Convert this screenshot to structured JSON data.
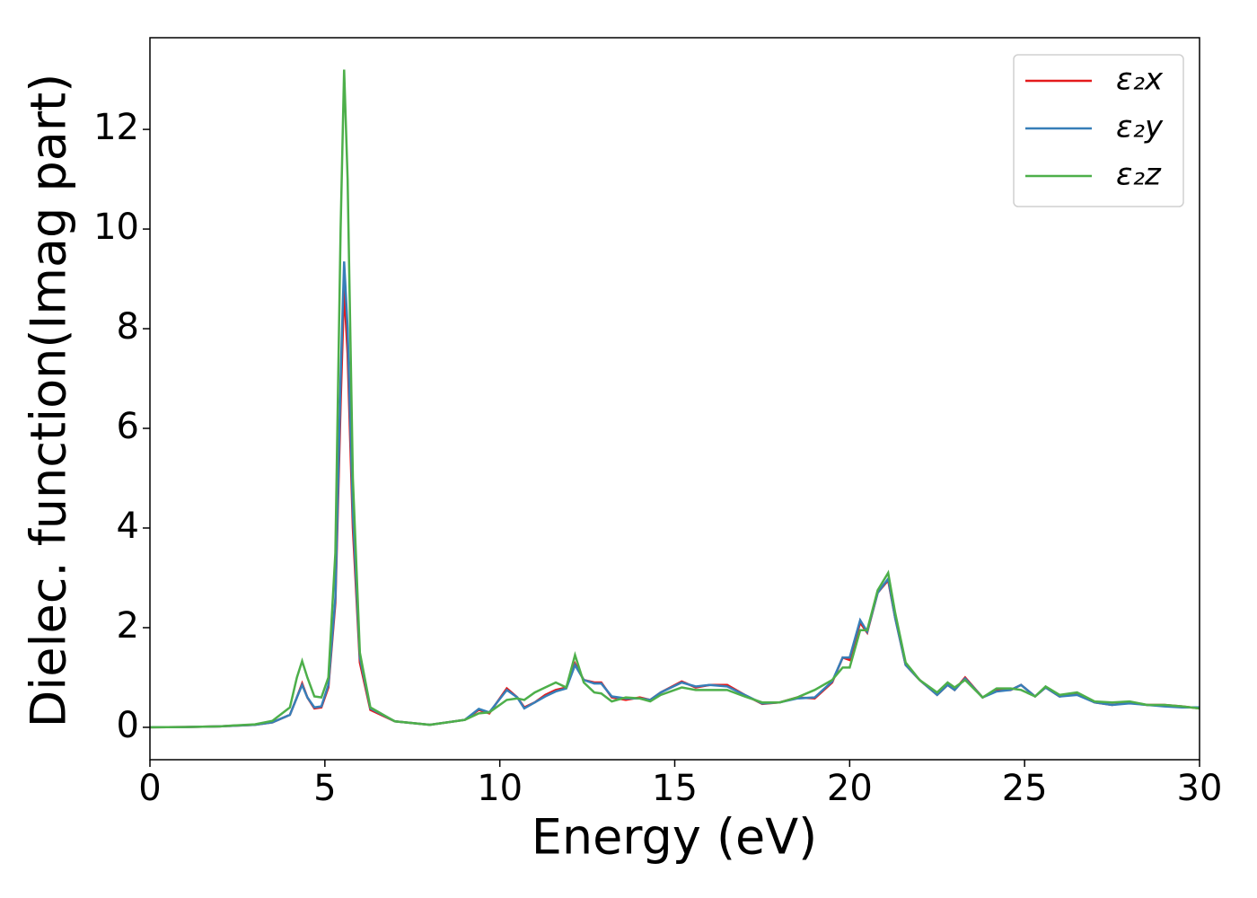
{
  "chart_data": {
    "type": "line",
    "xlabel": "Energy (eV)",
    "ylabel": "Dielec. function(Imag part)",
    "x": [
      0,
      1,
      2,
      3,
      3.5,
      4.0,
      4.2,
      4.35,
      4.5,
      4.7,
      4.9,
      5.1,
      5.3,
      5.45,
      5.55,
      5.65,
      5.8,
      6.0,
      6.3,
      7,
      8,
      9,
      9.4,
      9.7,
      10.2,
      10.5,
      10.7,
      11.0,
      11.3,
      11.6,
      11.9,
      12.15,
      12.4,
      12.7,
      12.9,
      13.2,
      13.6,
      14,
      14.3,
      14.6,
      15.2,
      15.6,
      16,
      16.5,
      17,
      17.5,
      18,
      18.5,
      19,
      19.5,
      19.8,
      20.0,
      20.3,
      20.5,
      20.8,
      21.1,
      21.3,
      21.6,
      22,
      22.5,
      22.8,
      23.0,
      23.3,
      23.8,
      24.2,
      24.6,
      24.9,
      25.3,
      25.6,
      26.0,
      26.5,
      27,
      27.5,
      28,
      28.5,
      29,
      29.5,
      30
    ],
    "series": [
      {
        "name": "ε₂x",
        "color": "#e41a1c",
        "values": [
          0,
          0.005,
          0.02,
          0.05,
          0.1,
          0.25,
          0.6,
          0.88,
          0.6,
          0.38,
          0.4,
          0.8,
          2.5,
          6.5,
          8.8,
          7.5,
          4.0,
          1.3,
          0.35,
          0.12,
          0.05,
          0.15,
          0.35,
          0.28,
          0.78,
          0.6,
          0.4,
          0.5,
          0.65,
          0.75,
          0.8,
          1.28,
          0.95,
          0.9,
          0.9,
          0.6,
          0.55,
          0.6,
          0.55,
          0.7,
          0.92,
          0.8,
          0.85,
          0.85,
          0.65,
          0.47,
          0.5,
          0.6,
          0.58,
          0.9,
          1.4,
          1.35,
          2.1,
          1.9,
          2.7,
          2.95,
          2.2,
          1.25,
          0.95,
          0.65,
          0.85,
          0.75,
          1.0,
          0.6,
          0.75,
          0.75,
          0.85,
          0.62,
          0.8,
          0.62,
          0.68,
          0.5,
          0.45,
          0.5,
          0.45,
          0.45,
          0.42,
          0.38
        ]
      },
      {
        "name": "ε₂y",
        "color": "#377eb8",
        "values": [
          0,
          0.005,
          0.02,
          0.05,
          0.1,
          0.25,
          0.6,
          0.85,
          0.6,
          0.4,
          0.42,
          0.85,
          2.6,
          7.0,
          9.35,
          8.0,
          4.3,
          1.4,
          0.38,
          0.12,
          0.05,
          0.15,
          0.37,
          0.3,
          0.75,
          0.6,
          0.38,
          0.5,
          0.62,
          0.72,
          0.78,
          1.25,
          0.95,
          0.88,
          0.88,
          0.62,
          0.58,
          0.58,
          0.55,
          0.7,
          0.9,
          0.82,
          0.85,
          0.82,
          0.65,
          0.48,
          0.5,
          0.58,
          0.6,
          0.92,
          1.4,
          1.4,
          2.15,
          1.92,
          2.7,
          2.98,
          2.2,
          1.25,
          0.95,
          0.65,
          0.85,
          0.75,
          0.98,
          0.6,
          0.72,
          0.75,
          0.85,
          0.62,
          0.8,
          0.62,
          0.65,
          0.5,
          0.45,
          0.48,
          0.45,
          0.42,
          0.4,
          0.4
        ]
      },
      {
        "name": "ε₂z",
        "color": "#4daf4a",
        "values": [
          0,
          0.005,
          0.02,
          0.06,
          0.13,
          0.4,
          1.0,
          1.33,
          1.0,
          0.62,
          0.6,
          1.0,
          3.5,
          10.0,
          13.2,
          11.0,
          5.0,
          1.5,
          0.4,
          0.12,
          0.05,
          0.15,
          0.28,
          0.3,
          0.55,
          0.58,
          0.55,
          0.7,
          0.8,
          0.9,
          0.8,
          1.45,
          0.9,
          0.7,
          0.68,
          0.52,
          0.6,
          0.58,
          0.52,
          0.65,
          0.8,
          0.75,
          0.75,
          0.75,
          0.62,
          0.5,
          0.5,
          0.6,
          0.75,
          0.95,
          1.2,
          1.2,
          1.95,
          1.95,
          2.75,
          3.1,
          2.3,
          1.3,
          0.95,
          0.7,
          0.9,
          0.8,
          0.95,
          0.6,
          0.78,
          0.78,
          0.75,
          0.62,
          0.82,
          0.65,
          0.7,
          0.52,
          0.5,
          0.52,
          0.45,
          0.45,
          0.42,
          0.38
        ]
      }
    ],
    "xlim": [
      0,
      30
    ],
    "xticks": [
      0,
      5,
      10,
      15,
      20,
      25,
      30
    ],
    "ylim": [
      -0.65,
      13.84
    ],
    "yticks": [
      0,
      2,
      4,
      6,
      8,
      10,
      12
    ],
    "legend": "upper right",
    "grid": false
  }
}
